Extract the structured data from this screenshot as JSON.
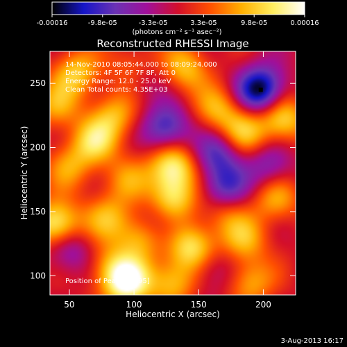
{
  "chart_data": {
    "type": "heatmap",
    "title": "Reconstructed RHESSI Image",
    "xlabel": "Heliocentric X (arcsec)",
    "ylabel": "Heliocentric Y (arcsec)",
    "xlim": [
      35,
      225
    ],
    "ylim": [
      85,
      275
    ],
    "xticks": [
      50,
      100,
      150,
      200
    ],
    "yticks": [
      100,
      150,
      200,
      250
    ],
    "grid": false,
    "colorbar": {
      "range": [
        -0.00016,
        0.00016
      ],
      "tick_labels": [
        "-0.00016",
        "-9.8e-05",
        "-3.3e-05",
        "3.3e-05",
        "9.8e-05",
        "0.00016"
      ],
      "units_label": "(photons cm⁻² s⁻¹ asec⁻²)",
      "colormap": [
        "#000000",
        "#1515c8",
        "#6a32b4",
        "#a0109a",
        "#d40f2a",
        "#ff5000",
        "#ffb000",
        "#ffee60",
        "#ffffff"
      ]
    },
    "annotations": [
      "14-Nov-2010 08:05:44.000 to 08:09:24.000",
      "Detectors: 4F 5F 6F 7F 8F, Att 0",
      "Energy Range: 12.0 - 25.0 keV",
      "Clean    Total counts: 4.35E+03"
    ],
    "footer_note": "Position of Peak: [95,95]",
    "peak": {
      "x": 95,
      "y": 95
    },
    "sources": [
      {
        "x": 55,
        "y": 258,
        "value": 9.5e-05
      },
      {
        "x": 100,
        "y": 262,
        "value": 8e-05
      },
      {
        "x": 140,
        "y": 262,
        "value": 9e-05
      },
      {
        "x": 40,
        "y": 232,
        "value": 7e-05
      },
      {
        "x": 85,
        "y": 225,
        "value": 8e-05
      },
      {
        "x": 70,
        "y": 205,
        "value": 0.0001
      },
      {
        "x": 50,
        "y": 185,
        "value": 7e-05
      },
      {
        "x": 95,
        "y": 175,
        "value": 6e-05
      },
      {
        "x": 165,
        "y": 230,
        "value": 8e-05
      },
      {
        "x": 185,
        "y": 212,
        "value": 9e-05
      },
      {
        "x": 215,
        "y": 222,
        "value": 0.00011
      },
      {
        "x": 130,
        "y": 185,
        "value": 0.00013
      },
      {
        "x": 130,
        "y": 160,
        "value": 0.00011
      },
      {
        "x": 170,
        "y": 150,
        "value": 6e-05
      },
      {
        "x": 210,
        "y": 160,
        "value": 8e-05
      },
      {
        "x": 40,
        "y": 140,
        "value": 0.00014
      },
      {
        "x": 80,
        "y": 145,
        "value": 8e-05
      },
      {
        "x": 105,
        "y": 130,
        "value": 9e-05
      },
      {
        "x": 145,
        "y": 122,
        "value": 0.00012
      },
      {
        "x": 185,
        "y": 128,
        "value": 8e-05
      },
      {
        "x": 80,
        "y": 108,
        "value": 6e-05
      },
      {
        "x": 95,
        "y": 95,
        "value": 0.00016
      },
      {
        "x": 130,
        "y": 95,
        "value": 9e-05
      },
      {
        "x": 190,
        "y": 95,
        "value": 8e-05
      },
      {
        "x": 198,
        "y": 245,
        "value": -0.00016
      },
      {
        "x": 125,
        "y": 215,
        "value": -0.00011
      },
      {
        "x": 165,
        "y": 195,
        "value": -9e-05
      },
      {
        "x": 170,
        "y": 168,
        "value": -0.0001
      },
      {
        "x": 105,
        "y": 255,
        "value": -6e-05
      },
      {
        "x": 50,
        "y": 120,
        "value": -7e-05
      },
      {
        "x": 120,
        "y": 140,
        "value": -5e-05
      },
      {
        "x": 205,
        "y": 185,
        "value": -7e-05
      },
      {
        "x": 160,
        "y": 105,
        "value": -5e-05
      }
    ]
  },
  "timestamp": "3-Aug-2013 16:17"
}
